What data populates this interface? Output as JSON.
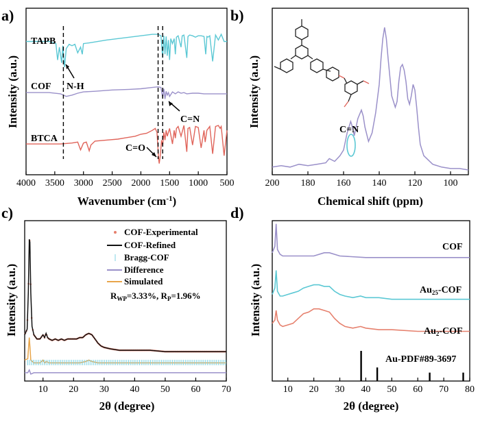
{
  "colors": {
    "cyan": "#5bc8d4",
    "purple": "#9a90c9",
    "red": "#e0645a",
    "black": "#111111",
    "orange": "#e8a54a",
    "salmon": "#e6806d",
    "bragg": "#7fd3e3"
  },
  "chart_data": [
    {
      "panel": "a",
      "type": "line",
      "panel_label": "a)",
      "xlabel": "Wavenumber (cm",
      "xlabel_sup": "-1",
      "xlabel_end": ")",
      "ylabel": "Intensity (a.u.)",
      "xlim": [
        4000,
        500
      ],
      "xticks": [
        "4000",
        "3500",
        "3000",
        "2500",
        "2000",
        "1500",
        "1000",
        "500"
      ],
      "series": [
        {
          "name": "TAPB",
          "color": "#5bc8d4",
          "x": [
            4000,
            3800,
            3600,
            3480,
            3450,
            3420,
            3380,
            3360,
            3330,
            3300,
            3250,
            3200,
            3150,
            3100,
            3050,
            3020,
            3000,
            2900,
            2600,
            2300,
            2000,
            1800,
            1700,
            1650,
            1620,
            1600,
            1580,
            1560,
            1540,
            1520,
            1500,
            1480,
            1450,
            1420,
            1400,
            1380,
            1350,
            1300,
            1280,
            1250,
            1200,
            1180,
            1150,
            1100,
            1050,
            1000,
            950,
            900,
            870,
            850,
            830,
            800,
            750,
            700,
            650,
            600,
            550,
            500
          ],
          "y": [
            0.88,
            0.88,
            0.88,
            0.85,
            0.62,
            0.8,
            0.58,
            0.82,
            0.52,
            0.78,
            0.84,
            0.82,
            0.84,
            0.72,
            0.8,
            0.7,
            0.85,
            0.86,
            0.9,
            0.93,
            0.96,
            0.98,
            0.98,
            0.96,
            0.65,
            0.96,
            0.7,
            0.95,
            0.68,
            0.9,
            0.62,
            0.92,
            0.85,
            0.92,
            0.7,
            0.94,
            0.96,
            0.8,
            0.96,
            0.97,
            0.65,
            0.95,
            0.97,
            0.96,
            0.94,
            0.96,
            0.96,
            0.95,
            0.7,
            0.95,
            0.94,
            0.96,
            0.6,
            0.97,
            0.9,
            0.98,
            0.88,
            0.88
          ]
        },
        {
          "name": "COF",
          "color": "#9a90c9",
          "x": [
            4000,
            3800,
            3600,
            3400,
            3300,
            3200,
            3100,
            3000,
            2800,
            2500,
            2200,
            2000,
            1800,
            1700,
            1650,
            1620,
            1600,
            1580,
            1560,
            1540,
            1520,
            1500,
            1450,
            1400,
            1350,
            1300,
            1250,
            1200,
            1100,
            1000,
            900,
            800,
            700,
            600,
            500
          ],
          "y": [
            0.46,
            0.46,
            0.46,
            0.44,
            0.4,
            0.42,
            0.45,
            0.47,
            0.48,
            0.5,
            0.51,
            0.52,
            0.54,
            0.55,
            0.54,
            0.38,
            0.52,
            0.36,
            0.48,
            0.42,
            0.46,
            0.4,
            0.47,
            0.44,
            0.47,
            0.45,
            0.46,
            0.44,
            0.45,
            0.45,
            0.44,
            0.44,
            0.44,
            0.44,
            0.44
          ]
        },
        {
          "name": "BTCA",
          "color": "#e0645a",
          "x": [
            4000,
            3800,
            3600,
            3400,
            3200,
            3100,
            3050,
            3000,
            2950,
            2900,
            2870,
            2800,
            2600,
            2400,
            2300,
            2200,
            2100,
            2000,
            1900,
            1800,
            1750,
            1720,
            1700,
            1690,
            1680,
            1660,
            1640,
            1620,
            1600,
            1580,
            1560,
            1540,
            1500,
            1450,
            1420,
            1400,
            1380,
            1350,
            1300,
            1250,
            1200,
            1180,
            1150,
            1100,
            1050,
            1000,
            950,
            900,
            880,
            850,
            800,
            750,
            700,
            650,
            620,
            600,
            550,
            500
          ],
          "y": [
            0.06,
            0.06,
            0.06,
            0.06,
            0.07,
            0.08,
            0.0,
            0.07,
            0.08,
            -0.01,
            0.05,
            0.09,
            0.1,
            0.11,
            0.12,
            0.13,
            0.14,
            0.16,
            0.17,
            0.2,
            0.22,
            0.18,
            0.0,
            -0.1,
            -0.14,
            -0.05,
            0.1,
            0.04,
            0.18,
            0.1,
            0.2,
            0.14,
            0.22,
            0.06,
            0.2,
            0.12,
            0.22,
            0.24,
            0.14,
            0.25,
            -0.02,
            0.22,
            0.23,
            0.05,
            0.24,
            0.23,
            0.02,
            0.2,
            0.08,
            0.2,
            0.24,
            -0.04,
            0.24,
            0.25,
            0.22,
            0.24,
            -0.06,
            0.2
          ]
        }
      ],
      "annotations": {
        "tapb_label": "TAPB",
        "cof_label": "COF",
        "btca_label": "BTCA",
        "nh": "N-H",
        "cn": "C=N",
        "co": "C=O"
      },
      "dashed_lines_x": [
        3350,
        1700,
        1620
      ]
    },
    {
      "panel": "b",
      "type": "line",
      "panel_label": "b)",
      "xlabel": "Chemical shift (ppm)",
      "ylabel": "Intensity (a.u.)",
      "xlim": [
        200,
        90
      ],
      "xticks": [
        "200",
        "180",
        "160",
        "140",
        "120",
        "100"
      ],
      "series": [
        {
          "name": "",
          "color": "#9a90c9",
          "x": [
            200,
            195,
            190,
            185,
            180,
            175,
            170,
            168,
            165,
            162,
            160,
            158,
            157,
            156,
            155,
            154,
            152,
            150,
            149,
            148,
            146,
            144,
            142,
            140,
            139,
            138,
            137,
            136,
            135,
            133,
            131,
            130,
            129,
            128,
            127,
            126,
            125,
            124,
            123,
            122,
            121,
            120,
            119,
            118,
            117,
            115,
            110,
            105,
            100,
            95,
            90
          ],
          "y": [
            0.02,
            0.03,
            0.02,
            0.04,
            0.03,
            0.04,
            0.05,
            0.08,
            0.06,
            0.1,
            0.14,
            0.26,
            0.3,
            0.34,
            0.3,
            0.24,
            0.36,
            0.42,
            0.38,
            0.3,
            0.2,
            0.26,
            0.4,
            0.6,
            0.78,
            0.92,
            1.0,
            0.92,
            0.78,
            0.52,
            0.44,
            0.48,
            0.62,
            0.72,
            0.74,
            0.7,
            0.62,
            0.5,
            0.46,
            0.52,
            0.6,
            0.56,
            0.44,
            0.3,
            0.18,
            0.1,
            0.04,
            0.02,
            0.01,
            0.01,
            0.0
          ]
        }
      ],
      "annotations": {
        "cn": "C=N"
      }
    },
    {
      "panel": "c",
      "type": "line",
      "panel_label": "c)",
      "xlabel": "2θ (degree)",
      "ylabel": "Intensity (a.u.)",
      "xlim": [
        4,
        70
      ],
      "xticks": [
        "10",
        "20",
        "30",
        "40",
        "50",
        "60",
        "70"
      ],
      "legend": {
        "items": [
          "COF-Experimental",
          "COF-Refined",
          "Bragg-COF",
          "Difference",
          "Simulated"
        ],
        "placement": "top-right"
      },
      "r_text": {
        "rwp_label": "R",
        "rwp_sub": "WP",
        "rwp_val": "=3.33%, R",
        "rp_sub": "P",
        "rp_val": "=1.96%"
      },
      "series": [
        {
          "name": "COF-Refined",
          "color": "#111111",
          "x": [
            4,
            4.8,
            5.2,
            5.5,
            5.7,
            6.0,
            6.4,
            7,
            8,
            9,
            10,
            10.5,
            11,
            11.5,
            12,
            13,
            14,
            15,
            16,
            17,
            18,
            19,
            20,
            21,
            22,
            23,
            24,
            25,
            26,
            27,
            28,
            29,
            30,
            32,
            35,
            40,
            45,
            50,
            55,
            60,
            65,
            70
          ],
          "y": [
            0.3,
            0.34,
            0.6,
            0.98,
            0.96,
            0.6,
            0.36,
            0.3,
            0.27,
            0.27,
            0.3,
            0.28,
            0.31,
            0.28,
            0.27,
            0.26,
            0.27,
            0.26,
            0.27,
            0.26,
            0.27,
            0.27,
            0.27,
            0.27,
            0.28,
            0.28,
            0.3,
            0.31,
            0.3,
            0.27,
            0.24,
            0.22,
            0.21,
            0.2,
            0.19,
            0.19,
            0.19,
            0.18,
            0.18,
            0.18,
            0.18,
            0.18
          ]
        },
        {
          "name": "Simulated",
          "color": "#e8a54a",
          "x": [
            4,
            5,
            5.3,
            5.5,
            5.7,
            6,
            7,
            9,
            10,
            10.5,
            11,
            12,
            14,
            16,
            18,
            20,
            22,
            24,
            25,
            26,
            28,
            30,
            40,
            50,
            60,
            70
          ],
          "y": [
            0.12,
            0.13,
            0.22,
            0.28,
            0.22,
            0.12,
            0.1,
            0.1,
            0.12,
            0.1,
            0.11,
            0.1,
            0.1,
            0.1,
            0.1,
            0.1,
            0.1,
            0.11,
            0.12,
            0.11,
            0.1,
            0.1,
            0.1,
            0.1,
            0.1,
            0.1
          ]
        },
        {
          "name": "Difference",
          "color": "#9a90c9",
          "x": [
            4,
            5,
            5.5,
            6,
            7,
            10,
            20,
            30,
            40,
            50,
            60,
            70
          ],
          "y": [
            0.03,
            0.03,
            0.05,
            0.02,
            0.03,
            0.03,
            0.03,
            0.03,
            0.03,
            0.03,
            0.03,
            0.03
          ]
        }
      ]
    },
    {
      "panel": "d",
      "type": "line",
      "panel_label": "d)",
      "xlabel": "2θ (degree)",
      "ylabel": "Intensity (a.u.)",
      "xlim": [
        4,
        80
      ],
      "xticks": [
        "10",
        "20",
        "30",
        "40",
        "50",
        "60",
        "70",
        "80"
      ],
      "series": [
        {
          "name": "COF",
          "label": "COF",
          "color": "#9a90c9",
          "x": [
            4,
            5,
            5.5,
            6,
            7,
            8,
            10,
            12,
            15,
            20,
            24,
            26,
            28,
            30,
            40,
            50,
            60,
            70,
            80
          ],
          "y": [
            0.8,
            0.84,
            0.98,
            0.82,
            0.79,
            0.78,
            0.78,
            0.78,
            0.78,
            0.78,
            0.8,
            0.8,
            0.79,
            0.78,
            0.77,
            0.77,
            0.77,
            0.77,
            0.77
          ]
        },
        {
          "name": "Au25-COF",
          "label": "Au",
          "label_sub": "25",
          "label_end": "-COF",
          "color": "#5bc8d4",
          "x": [
            4,
            5,
            5.5,
            6,
            7,
            8,
            10,
            12,
            14,
            16,
            18,
            20,
            22,
            24,
            26,
            28,
            30,
            32,
            35,
            38,
            40,
            45,
            50,
            60,
            70,
            80
          ],
          "y": [
            0.54,
            0.58,
            0.69,
            0.56,
            0.53,
            0.53,
            0.54,
            0.55,
            0.56,
            0.58,
            0.59,
            0.6,
            0.6,
            0.59,
            0.59,
            0.56,
            0.54,
            0.53,
            0.52,
            0.53,
            0.52,
            0.52,
            0.51,
            0.51,
            0.51,
            0.51
          ]
        },
        {
          "name": "Au2-COF",
          "label": "Au",
          "label_sub": "2",
          "label_end": "-COF",
          "color": "#e6806d",
          "x": [
            4,
            5,
            5.5,
            6,
            7,
            8,
            10,
            12,
            14,
            16,
            18,
            20,
            22,
            24,
            26,
            28,
            30,
            32,
            35,
            38,
            40,
            45,
            50,
            60,
            70,
            80
          ],
          "y": [
            0.36,
            0.38,
            0.44,
            0.38,
            0.35,
            0.34,
            0.35,
            0.36,
            0.39,
            0.42,
            0.43,
            0.45,
            0.45,
            0.44,
            0.43,
            0.39,
            0.36,
            0.34,
            0.33,
            0.34,
            0.33,
            0.32,
            0.32,
            0.31,
            0.31,
            0.31
          ]
        }
      ],
      "reference": {
        "label": "Au-PDF#89-3697",
        "positions": [
          38.2,
          44.4,
          64.6,
          77.5
        ],
        "heights": [
          1.0,
          0.45,
          0.28,
          0.28
        ]
      }
    }
  ]
}
